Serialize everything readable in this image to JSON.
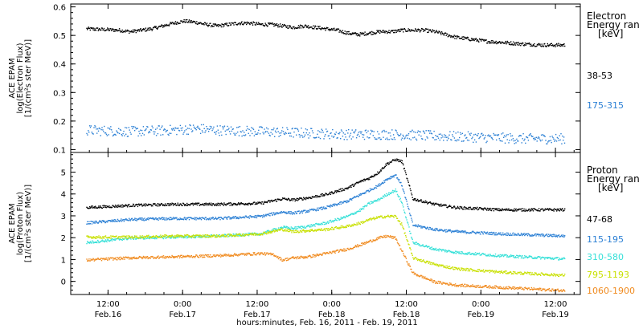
{
  "chart_data": [
    {
      "type": "scatter",
      "ylabel_lines": [
        "ACE EPAM",
        "log(Electron Flux)",
        "[1/(cm²s ster MeV)]"
      ],
      "ylim": [
        0.09,
        0.61
      ],
      "yticks": [
        0.1,
        0.2,
        0.3,
        0.4,
        0.5,
        0.6
      ],
      "ytick_labels": [
        "0.1",
        "0.2",
        "0.3",
        "0.4",
        "0.5",
        "0.6"
      ],
      "legend_title_lines": [
        "Electron",
        "Energy ran",
        "[keV]"
      ],
      "series": [
        {
          "name": "38-53",
          "color": "#000000",
          "x": [
            -0.5,
            0.25,
            0.5,
            0.75,
            1,
            1.25,
            1.5,
            1.75,
            2,
            2.25,
            2.5,
            2.75,
            3,
            3.25,
            3.5,
            3.75,
            4,
            4.25,
            4.5,
            4.75,
            5,
            5.25,
            5.5,
            5.75,
            6,
            6.25,
            6.5,
            6.75,
            7,
            7.25,
            7.5,
            7.75,
            8,
            8.25,
            8.5,
            8.75,
            9,
            9.25,
            9.5,
            9.75,
            10,
            10.25,
            10.5
          ],
          "y": [
            0.525,
            0.52,
            0.515,
            0.52,
            0.525,
            0.535,
            0.545,
            0.552,
            0.548,
            0.54,
            0.535,
            0.54,
            0.545,
            0.545,
            0.54,
            0.54,
            0.535,
            0.53,
            0.535,
            0.53,
            0.525,
            0.52,
            0.51,
            0.505,
            0.51,
            0.515,
            0.515,
            0.52,
            0.52,
            0.52,
            0.515,
            0.505,
            0.495,
            0.49,
            0.485,
            0.48,
            0.478,
            0.475,
            0.472,
            0.47,
            0.468,
            0.468,
            0.468
          ],
          "noise": 0.006
        },
        {
          "name": "175-315",
          "color": "#2a7fd4",
          "x": [
            -0.5,
            0.5,
            1.5,
            2,
            2.5,
            3.5,
            4.5,
            5.5,
            6.5,
            7.5,
            8.5,
            9.5,
            10.5
          ],
          "y": [
            0.17,
            0.165,
            0.17,
            0.175,
            0.17,
            0.165,
            0.16,
            0.155,
            0.155,
            0.15,
            0.145,
            0.14,
            0.14
          ],
          "noise": 0.018
        }
      ]
    },
    {
      "type": "scatter",
      "ylabel_lines": [
        "ACE EPAM",
        "log(Proton Flux)",
        "[1/(cm²s ster MeV)]"
      ],
      "ylim": [
        -0.6,
        5.9
      ],
      "yticks": [
        0,
        1,
        2,
        3,
        4,
        5
      ],
      "ytick_labels": [
        "0",
        "1",
        "2",
        "3",
        "4",
        "5"
      ],
      "legend_title_lines": [
        "Proton",
        "Energy ran",
        "[keV]"
      ],
      "series": [
        {
          "name": "47-68",
          "color": "#000000",
          "x": [
            -0.5,
            0.5,
            1.5,
            2.5,
            3.5,
            4,
            4.25,
            4.6,
            5,
            5.5,
            5.8,
            6,
            6.2,
            6.4,
            6.6,
            6.75,
            7,
            7.5,
            8,
            9,
            10.5
          ],
          "y": [
            3.4,
            3.5,
            3.55,
            3.55,
            3.6,
            3.8,
            3.75,
            3.85,
            4.0,
            4.3,
            4.6,
            4.75,
            5.0,
            5.4,
            5.6,
            5.5,
            3.8,
            3.55,
            3.4,
            3.3,
            3.3
          ],
          "noise": 0.06
        },
        {
          "name": "115-195",
          "color": "#2a7fd4",
          "x": [
            -0.5,
            0.5,
            1.5,
            2.5,
            3.5,
            4,
            4.25,
            4.6,
            5,
            5.5,
            5.8,
            6,
            6.2,
            6.4,
            6.6,
            6.75,
            7,
            7.5,
            8,
            9,
            10.5
          ],
          "y": [
            2.7,
            2.85,
            2.9,
            2.9,
            3.0,
            3.2,
            3.15,
            3.25,
            3.4,
            3.7,
            4.0,
            4.2,
            4.4,
            4.7,
            4.9,
            4.4,
            2.6,
            2.4,
            2.3,
            2.2,
            2.1
          ],
          "noise": 0.06
        },
        {
          "name": "310-580",
          "color": "#36e0d8",
          "x": [
            -0.5,
            0.5,
            1.5,
            2.5,
            3.5,
            4,
            4.25,
            4.6,
            5,
            5.5,
            5.8,
            6,
            6.2,
            6.4,
            6.6,
            6.75,
            7,
            7.5,
            8,
            9,
            10.5
          ],
          "y": [
            1.8,
            2.0,
            2.05,
            2.1,
            2.2,
            2.5,
            2.45,
            2.55,
            2.7,
            3.0,
            3.3,
            3.6,
            3.75,
            4.0,
            4.2,
            3.6,
            1.8,
            1.5,
            1.35,
            1.2,
            1.05
          ],
          "noise": 0.06
        },
        {
          "name": "795-1193",
          "color": "#c8e000",
          "x": [
            -0.5,
            0.5,
            1.5,
            2.5,
            3.5,
            4,
            4.25,
            4.6,
            5,
            5.5,
            5.8,
            6,
            6.2,
            6.4,
            6.6,
            6.75,
            7,
            7.5,
            8,
            9,
            10.5
          ],
          "y": [
            2.05,
            2.05,
            2.1,
            2.1,
            2.2,
            2.4,
            2.3,
            2.35,
            2.4,
            2.55,
            2.7,
            2.85,
            2.95,
            3.0,
            3.0,
            2.6,
            1.1,
            0.8,
            0.6,
            0.45,
            0.3
          ],
          "noise": 0.06
        },
        {
          "name": "1060-1900",
          "color": "#f08a1e",
          "x": [
            -0.5,
            0.5,
            1.5,
            2.5,
            3.5,
            3.8,
            4,
            4.25,
            4.6,
            5,
            5.5,
            5.8,
            6,
            6.2,
            6.4,
            6.6,
            6.75,
            7,
            7.5,
            8,
            9,
            10.5
          ],
          "y": [
            1.0,
            1.1,
            1.15,
            1.2,
            1.3,
            1.25,
            1.0,
            1.1,
            1.15,
            1.3,
            1.5,
            1.7,
            1.85,
            2.0,
            2.1,
            2.0,
            1.4,
            0.4,
            0.0,
            -0.15,
            -0.25,
            -0.4
          ],
          "noise": 0.06
        }
      ]
    }
  ],
  "x_axis": {
    "ticks": [
      0,
      3,
      6,
      9,
      12
    ],
    "tick_labels_top": [
      "12:00",
      "0:00",
      "12:00",
      "0:00",
      "12:00",
      "0:00",
      "12:00"
    ],
    "tick_labels_bottom": [
      "Feb.16",
      "Feb.17",
      "Feb.17",
      "Feb.18",
      "Feb.18",
      "Feb.19",
      "Feb.19"
    ],
    "tick_hours": [
      12,
      24,
      36,
      48,
      60,
      72,
      84
    ],
    "xlabel": "hours:minutes, Feb. 16, 2011 - Feb. 19, 2011",
    "xlim_hours": [
      6,
      88
    ]
  }
}
